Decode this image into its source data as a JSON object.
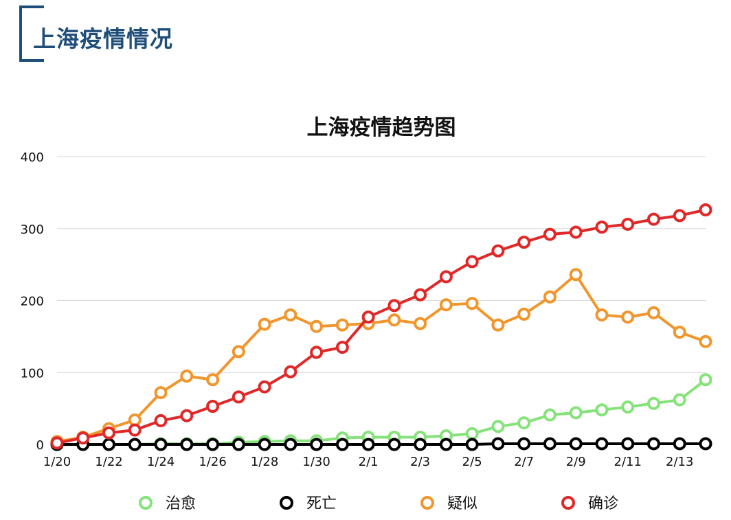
{
  "page": {
    "heading": "上海疫情情况"
  },
  "colors": {
    "heading": "#1f4e79",
    "治愈": "#86e27a",
    "死亡": "#000000",
    "疑似": "#f0962c",
    "确诊": "#e02828"
  },
  "chart_data": {
    "type": "line",
    "title": "上海疫情趋势图",
    "xlabel": "",
    "ylabel": "",
    "ylim": [
      0,
      400
    ],
    "yticks": [
      0,
      100,
      200,
      300,
      400
    ],
    "grid": true,
    "legend_position": "bottom",
    "x": [
      "1/20",
      "1/21",
      "1/22",
      "1/23",
      "1/24",
      "1/25",
      "1/26",
      "1/27",
      "1/28",
      "1/29",
      "1/30",
      "1/31",
      "2/1",
      "2/2",
      "2/3",
      "2/4",
      "2/5",
      "2/6",
      "2/7",
      "2/8",
      "2/9",
      "2/10",
      "2/11",
      "2/12",
      "2/13",
      "2/14"
    ],
    "x_tick_labels": [
      "1/20",
      "",
      "1/22",
      "",
      "1/24",
      "",
      "1/26",
      "",
      "1/28",
      "",
      "1/30",
      "",
      "2/1",
      "",
      "2/3",
      "",
      "2/5",
      "",
      "2/7",
      "",
      "2/9",
      "",
      "2/11",
      "",
      "2/13",
      ""
    ],
    "series": [
      {
        "name": "治愈",
        "values": [
          0,
          0,
          0,
          0,
          1,
          1,
          1,
          3,
          4,
          5,
          5,
          9,
          10,
          10,
          10,
          12,
          15,
          25,
          30,
          41,
          44,
          48,
          52,
          57,
          62,
          90
        ]
      },
      {
        "name": "死亡",
        "values": [
          0,
          0,
          0,
          0,
          0,
          0,
          0,
          0,
          0,
          0,
          0,
          0,
          0,
          0,
          0,
          0,
          0,
          1,
          1,
          1,
          1,
          1,
          1,
          1,
          1,
          1
        ]
      },
      {
        "name": "疑似",
        "values": [
          4,
          10,
          22,
          34,
          72,
          95,
          90,
          129,
          167,
          180,
          164,
          166,
          168,
          173,
          168,
          194,
          196,
          166,
          181,
          205,
          236,
          180,
          177,
          183,
          156,
          143
        ]
      },
      {
        "name": "确诊",
        "values": [
          2,
          9,
          16,
          20,
          33,
          40,
          53,
          66,
          80,
          101,
          128,
          135,
          177,
          193,
          208,
          233,
          254,
          269,
          281,
          292,
          295,
          302,
          306,
          313,
          318,
          326
        ]
      }
    ]
  }
}
